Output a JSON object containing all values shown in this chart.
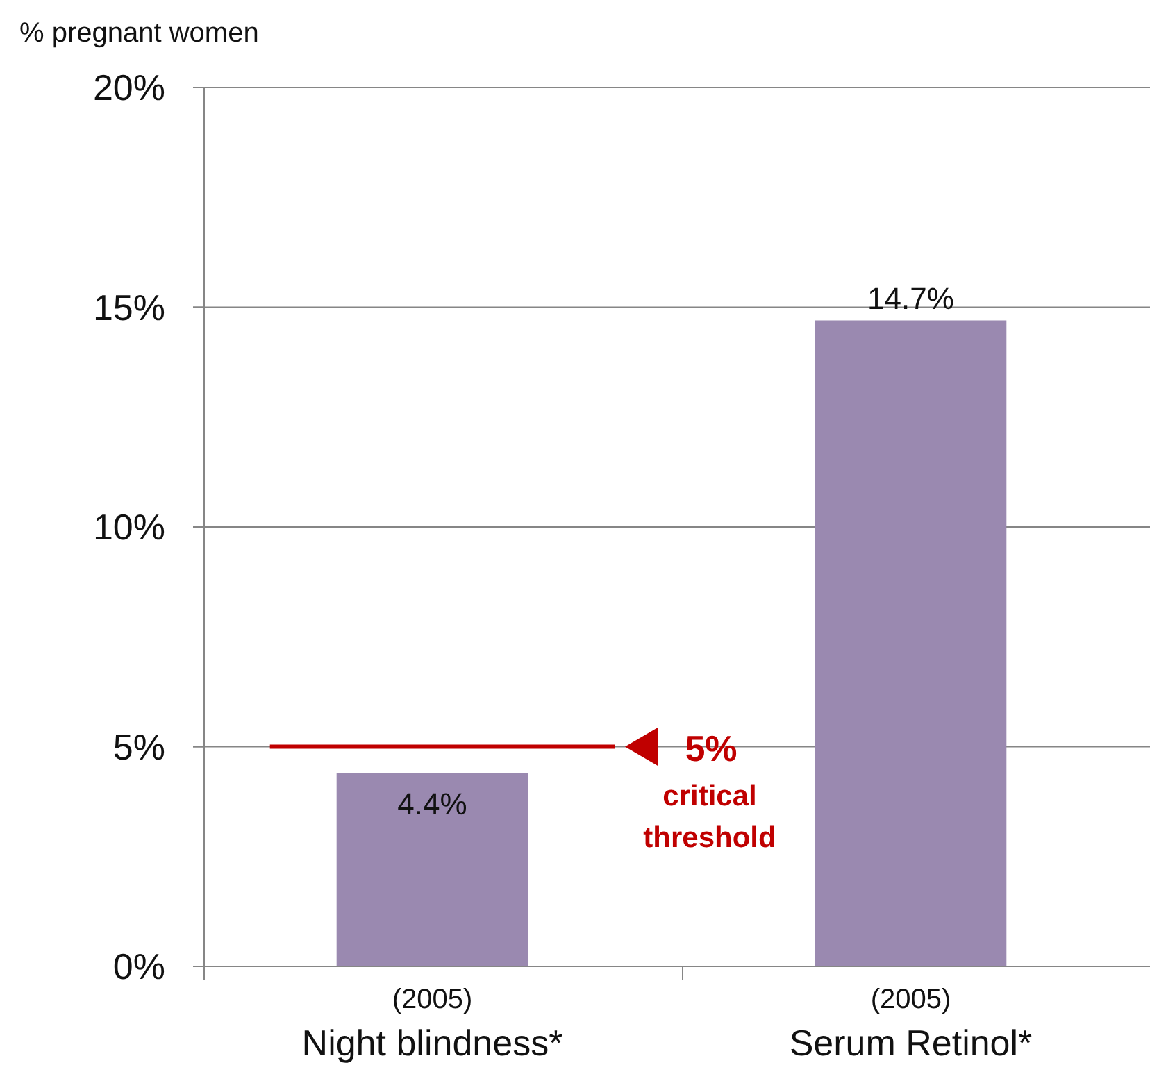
{
  "chart_data": {
    "type": "bar",
    "ylabel": "% pregnant women",
    "categories": [
      "(2005)\nNight blindness*",
      "(2005)\nSerum Retinol*"
    ],
    "values": [
      4.4,
      14.7
    ],
    "color": "#9a89b0",
    "value_labels": [
      "4.4%",
      "14.7%"
    ],
    "ylim": [
      0,
      20
    ],
    "yticks": [
      {
        "value": 0,
        "label": "0%"
      },
      {
        "value": 5,
        "label": "5%"
      },
      {
        "value": 10,
        "label": "10%"
      },
      {
        "value": 15,
        "label": "15%"
      },
      {
        "value": 20,
        "label": "20%"
      }
    ],
    "grid": "y",
    "ref_lines": [
      {
        "axis": "y",
        "value": 5,
        "label": "5%\ncritical\nthreshold",
        "color": "#c00000"
      }
    ]
  }
}
